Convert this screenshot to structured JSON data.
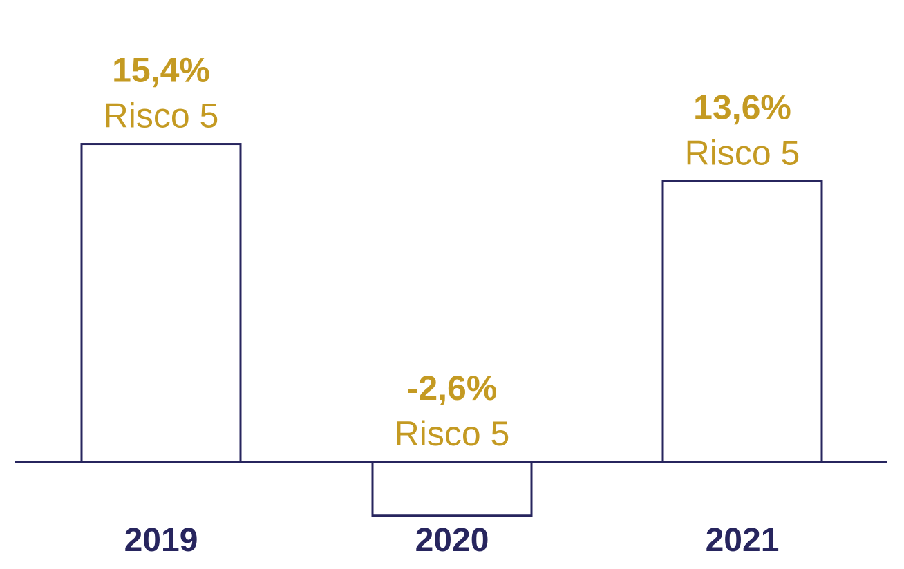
{
  "chart_data": {
    "type": "bar",
    "categories": [
      "2019",
      "2020",
      "2021"
    ],
    "values": [
      15.4,
      -2.6,
      13.6
    ],
    "value_labels": [
      "15,4%",
      "-2,6%",
      "13,6%"
    ],
    "risk_labels": [
      "Risco 5",
      "Risco 5",
      "Risco 5"
    ],
    "unit": "%",
    "title": "",
    "xlabel": "",
    "ylabel": "",
    "ylim": [
      -2.6,
      15.4
    ],
    "grid": false,
    "legend": "none"
  },
  "colors": {
    "bar_stroke": "#27255e",
    "axis": "#27255e",
    "category_text": "#27255e",
    "value_text": "#c49a22",
    "bar_fill": "#ffffff"
  }
}
